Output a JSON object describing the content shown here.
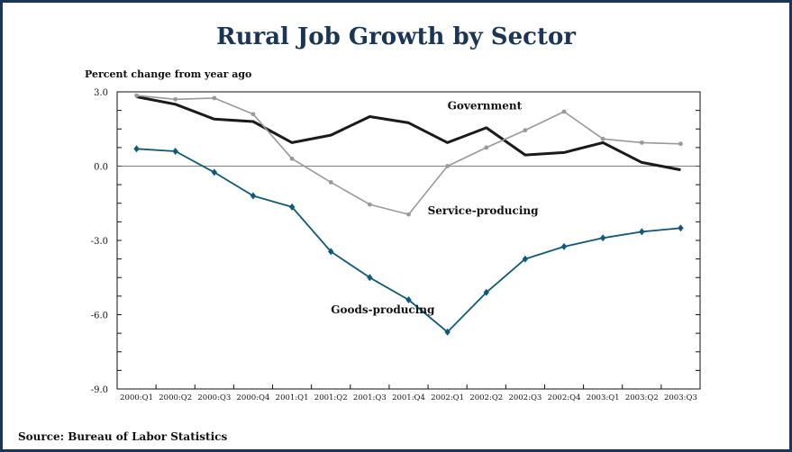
{
  "chart_data": {
    "type": "line",
    "title": "Rural Job Growth by Sector",
    "ylabel": "Percent change from year ago",
    "source": "Source: Bureau of Labor Statistics",
    "categories": [
      "2000:Q1",
      "2000:Q2",
      "2000:Q3",
      "2000:Q4",
      "2001:Q1",
      "2001:Q2",
      "2001:Q3",
      "2001:Q4",
      "2002:Q1",
      "2002:Q2",
      "2002:Q3",
      "2002:Q4",
      "2003:Q1",
      "2003:Q2",
      "2003:Q3"
    ],
    "ylim": [
      -9.0,
      3.0
    ],
    "yticks": [
      3.0,
      0.0,
      -3.0,
      -6.0,
      -9.0
    ],
    "ytick_labels": [
      "3.0",
      "0.0",
      "-3.0",
      "-6.0",
      "-9.0"
    ],
    "grid": false,
    "zero_line": true,
    "series": [
      {
        "name": "Government",
        "color": "#1a1a1a",
        "marker": "none",
        "values": [
          2.8,
          2.5,
          1.9,
          1.8,
          0.95,
          1.25,
          2.0,
          1.75,
          0.95,
          1.55,
          0.45,
          0.55,
          0.95,
          0.15,
          -0.15
        ]
      },
      {
        "name": "Service-producing",
        "color": "#999999",
        "marker": "circle",
        "values": [
          2.85,
          2.7,
          2.75,
          2.1,
          0.3,
          -0.65,
          -1.55,
          -1.95,
          0.0,
          0.75,
          1.45,
          2.2,
          1.1,
          0.95,
          0.9
        ]
      },
      {
        "name": "Goods-producing",
        "color": "#0e5a7a",
        "marker": "diamond",
        "values": [
          0.7,
          0.6,
          -0.25,
          -1.2,
          -1.65,
          -3.45,
          -4.5,
          -5.4,
          -6.7,
          -5.1,
          -3.75,
          -3.25,
          -2.9,
          -2.65,
          -2.5
        ]
      }
    ]
  }
}
